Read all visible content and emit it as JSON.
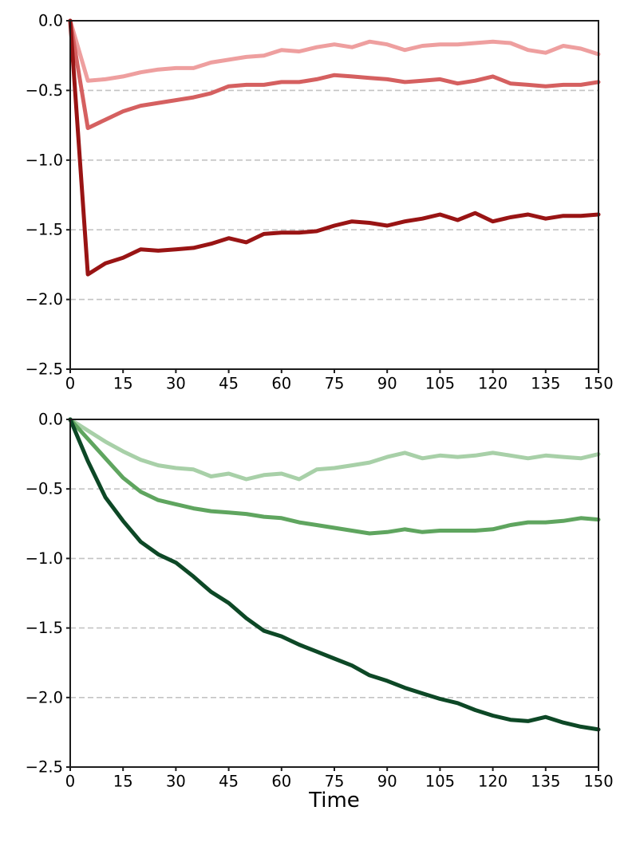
{
  "figure": {
    "background": "#ffffff",
    "title": "",
    "x_axis_label": "Time"
  },
  "style": {
    "grid_color": "#c4c4c4",
    "axis_color": "#1c1c1c",
    "line_width": 5,
    "grid_dash": "7 4"
  },
  "chart_data": [
    {
      "type": "line",
      "title": "",
      "xlabel": "",
      "ylabel": "",
      "xlim": [
        0,
        150
      ],
      "ylim": [
        -2.5,
        0
      ],
      "xticks": [
        0,
        15,
        30,
        45,
        60,
        75,
        90,
        105,
        120,
        135,
        150
      ],
      "yticks": [
        0,
        -0.5,
        -1,
        -1.5,
        -2,
        -2.5
      ],
      "grid": "horizontal-dashed",
      "legend": "none",
      "x": [
        0,
        5,
        10,
        15,
        20,
        25,
        30,
        35,
        40,
        45,
        50,
        55,
        60,
        65,
        70,
        75,
        80,
        85,
        90,
        95,
        100,
        105,
        110,
        115,
        120,
        125,
        130,
        135,
        140,
        145,
        150
      ],
      "series": [
        {
          "name": "light-red",
          "color": "#ee9f9f",
          "values": [
            0,
            -0.43,
            -0.42,
            -0.4,
            -0.37,
            -0.35,
            -0.34,
            -0.34,
            -0.3,
            -0.28,
            -0.26,
            -0.25,
            -0.21,
            -0.22,
            -0.19,
            -0.17,
            -0.19,
            -0.15,
            -0.17,
            -0.21,
            -0.18,
            -0.17,
            -0.17,
            -0.16,
            -0.15,
            -0.16,
            -0.21,
            -0.23,
            -0.18,
            -0.2,
            -0.24
          ]
        },
        {
          "name": "medium-red",
          "color": "#d56060",
          "values": [
            0,
            -0.77,
            -0.71,
            -0.65,
            -0.61,
            -0.59,
            -0.57,
            -0.55,
            -0.52,
            -0.47,
            -0.46,
            -0.46,
            -0.44,
            -0.44,
            -0.42,
            -0.39,
            -0.4,
            -0.41,
            -0.42,
            -0.44,
            -0.43,
            -0.42,
            -0.45,
            -0.43,
            -0.4,
            -0.45,
            -0.46,
            -0.47,
            -0.46,
            -0.46,
            -0.44
          ]
        },
        {
          "name": "dark-red",
          "color": "#991414",
          "values": [
            0,
            -1.82,
            -1.74,
            -1.7,
            -1.64,
            -1.65,
            -1.64,
            -1.63,
            -1.6,
            -1.56,
            -1.59,
            -1.53,
            -1.52,
            -1.52,
            -1.51,
            -1.47,
            -1.44,
            -1.45,
            -1.47,
            -1.44,
            -1.42,
            -1.39,
            -1.43,
            -1.38,
            -1.44,
            -1.41,
            -1.39,
            -1.42,
            -1.4,
            -1.4,
            -1.39
          ]
        }
      ]
    },
    {
      "type": "line",
      "title": "",
      "xlabel": "Time",
      "ylabel": "",
      "xlim": [
        0,
        150
      ],
      "ylim": [
        -2.5,
        0
      ],
      "xticks": [
        0,
        15,
        30,
        45,
        60,
        75,
        90,
        105,
        120,
        135,
        150
      ],
      "yticks": [
        0,
        -0.5,
        -1,
        -1.5,
        -2,
        -2.5
      ],
      "grid": "horizontal-dashed",
      "legend": "none",
      "x": [
        0,
        5,
        10,
        15,
        20,
        25,
        30,
        35,
        40,
        45,
        50,
        55,
        60,
        65,
        70,
        75,
        80,
        85,
        90,
        95,
        100,
        105,
        110,
        115,
        120,
        125,
        130,
        135,
        140,
        145,
        150
      ],
      "series": [
        {
          "name": "light-green",
          "color": "#a8d0a8",
          "values": [
            0,
            -0.08,
            -0.16,
            -0.23,
            -0.29,
            -0.33,
            -0.35,
            -0.36,
            -0.41,
            -0.39,
            -0.43,
            -0.4,
            -0.39,
            -0.43,
            -0.36,
            -0.35,
            -0.33,
            -0.31,
            -0.27,
            -0.24,
            -0.28,
            -0.26,
            -0.27,
            -0.26,
            -0.24,
            -0.26,
            -0.28,
            -0.26,
            -0.27,
            -0.28,
            -0.25
          ]
        },
        {
          "name": "medium-green",
          "color": "#5fa55f",
          "values": [
            0,
            -0.14,
            -0.28,
            -0.42,
            -0.52,
            -0.58,
            -0.61,
            -0.64,
            -0.66,
            -0.67,
            -0.68,
            -0.7,
            -0.71,
            -0.74,
            -0.76,
            -0.78,
            -0.8,
            -0.82,
            -0.81,
            -0.79,
            -0.81,
            -0.8,
            -0.8,
            -0.8,
            -0.79,
            -0.76,
            -0.74,
            -0.74,
            -0.73,
            -0.71,
            -0.72
          ]
        },
        {
          "name": "dark-green",
          "color": "#0d4826",
          "values": [
            0,
            -0.3,
            -0.56,
            -0.73,
            -0.88,
            -0.97,
            -1.03,
            -1.13,
            -1.24,
            -1.32,
            -1.43,
            -1.52,
            -1.56,
            -1.62,
            -1.67,
            -1.72,
            -1.77,
            -1.84,
            -1.88,
            -1.93,
            -1.97,
            -2.01,
            -2.04,
            -2.09,
            -2.13,
            -2.16,
            -2.17,
            -2.14,
            -2.18,
            -2.21,
            -2.23
          ]
        }
      ]
    }
  ]
}
